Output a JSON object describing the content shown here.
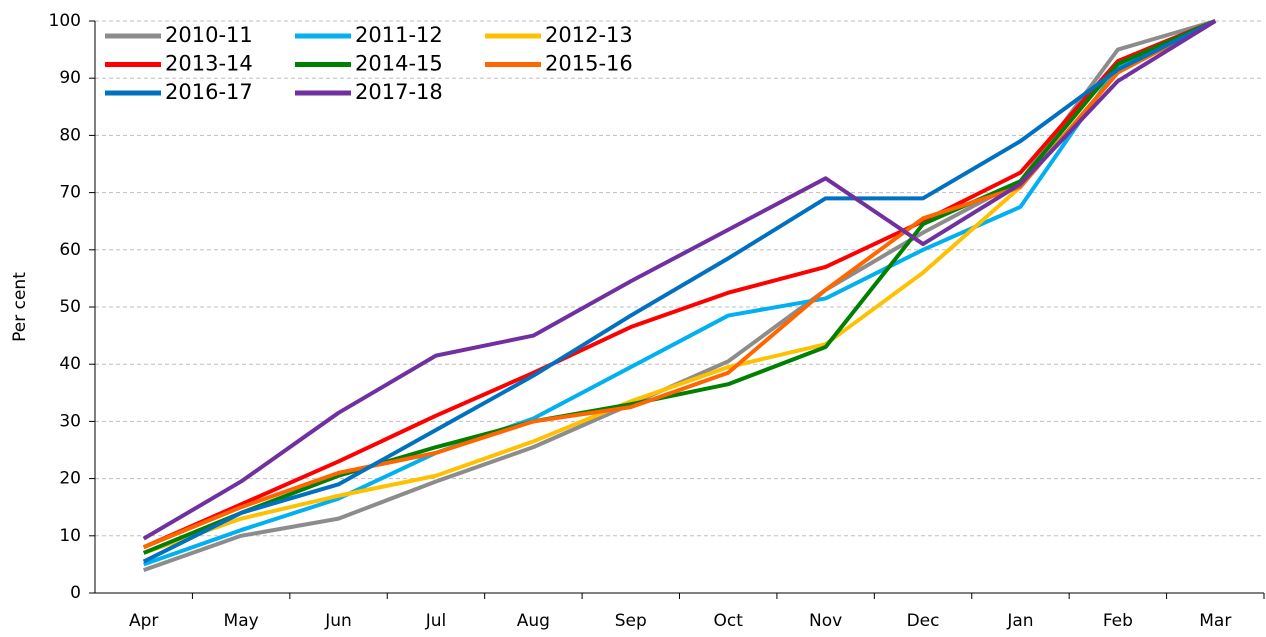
{
  "chart_data": {
    "type": "line",
    "y_label": "Per cent",
    "categories": [
      "Apr",
      "May",
      "Jun",
      "Jul",
      "Aug",
      "Sep",
      "Oct",
      "Nov",
      "Dec",
      "Jan",
      "Feb",
      "Mar"
    ],
    "series": [
      {
        "name": "2010-11",
        "color": "#8c8c8c",
        "values": [
          4,
          10,
          13,
          19.5,
          25.5,
          33,
          40.5,
          53,
          63,
          72,
          95,
          100
        ]
      },
      {
        "name": "2011-12",
        "color": "#00b0f0",
        "values": [
          5,
          11,
          16.5,
          24.5,
          30.5,
          39.5,
          48.5,
          51.5,
          60,
          67.5,
          92,
          100
        ]
      },
      {
        "name": "2012-13",
        "color": "#ffc000",
        "values": [
          7,
          13,
          17,
          20.5,
          26.5,
          33.5,
          39.5,
          43.5,
          56,
          71,
          91,
          100
        ]
      },
      {
        "name": "2013-14",
        "color": "#ff0000",
        "values": [
          8,
          15.5,
          23,
          31,
          38.5,
          46.5,
          52.5,
          57,
          65,
          73.5,
          93,
          100
        ]
      },
      {
        "name": "2014-15",
        "color": "#008000",
        "values": [
          7,
          14,
          20.5,
          25.5,
          30,
          33,
          36.5,
          43,
          64.5,
          72,
          92.5,
          100
        ]
      },
      {
        "name": "2015-16",
        "color": "#ff6600",
        "values": [
          8,
          15,
          21,
          24.5,
          30,
          32.5,
          38.5,
          53,
          65.5,
          71,
          91,
          100
        ]
      },
      {
        "name": "2016-17",
        "color": "#0070c0",
        "values": [
          5.5,
          14,
          19,
          28.5,
          38,
          48.5,
          58.5,
          69,
          69,
          79,
          91.5,
          100
        ]
      },
      {
        "name": "2017-18",
        "color": "#7030a0",
        "values": [
          9.5,
          19.5,
          31.5,
          41.5,
          45,
          54.5,
          63.5,
          72.5,
          61,
          71.5,
          89.5,
          100
        ]
      }
    ],
    "ylim": [
      0,
      100
    ],
    "yticks": [
      0,
      10,
      20,
      30,
      40,
      50,
      60,
      70,
      80,
      90,
      100
    ],
    "grid": true,
    "legend": "upper left"
  }
}
